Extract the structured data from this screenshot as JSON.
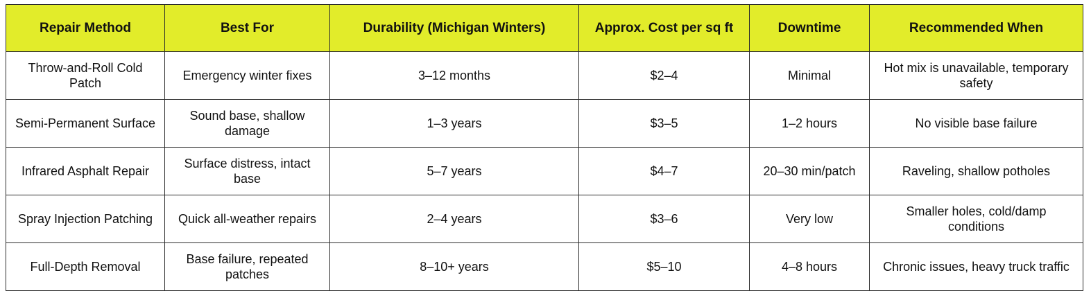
{
  "table": {
    "headers": [
      "Repair Method",
      "Best For",
      "Durability (Michigan Winters)",
      "Approx. Cost per sq ft",
      "Downtime",
      "Recommended When"
    ],
    "rows": [
      [
        "Throw-and-Roll Cold Patch",
        "Emergency winter fixes",
        "3–12 months",
        "$2–4",
        "Minimal",
        "Hot mix is unavailable, temporary safety"
      ],
      [
        "Semi-Permanent Surface",
        "Sound base, shallow damage",
        "1–3 years",
        "$3–5",
        "1–2 hours",
        "No visible base failure"
      ],
      [
        "Infrared Asphalt Repair",
        "Surface distress, intact base",
        "5–7 years",
        "$4–7",
        "20–30 min/patch",
        "Raveling, shallow potholes"
      ],
      [
        "Spray Injection Patching",
        "Quick all-weather repairs",
        "2–4 years",
        "$3–6",
        "Very low",
        "Smaller holes, cold/damp conditions"
      ],
      [
        "Full-Depth Removal",
        "Base failure, repeated patches",
        "8–10+ years",
        "$5–10",
        "4–8 hours",
        "Chronic issues, heavy truck traffic"
      ]
    ]
  }
}
